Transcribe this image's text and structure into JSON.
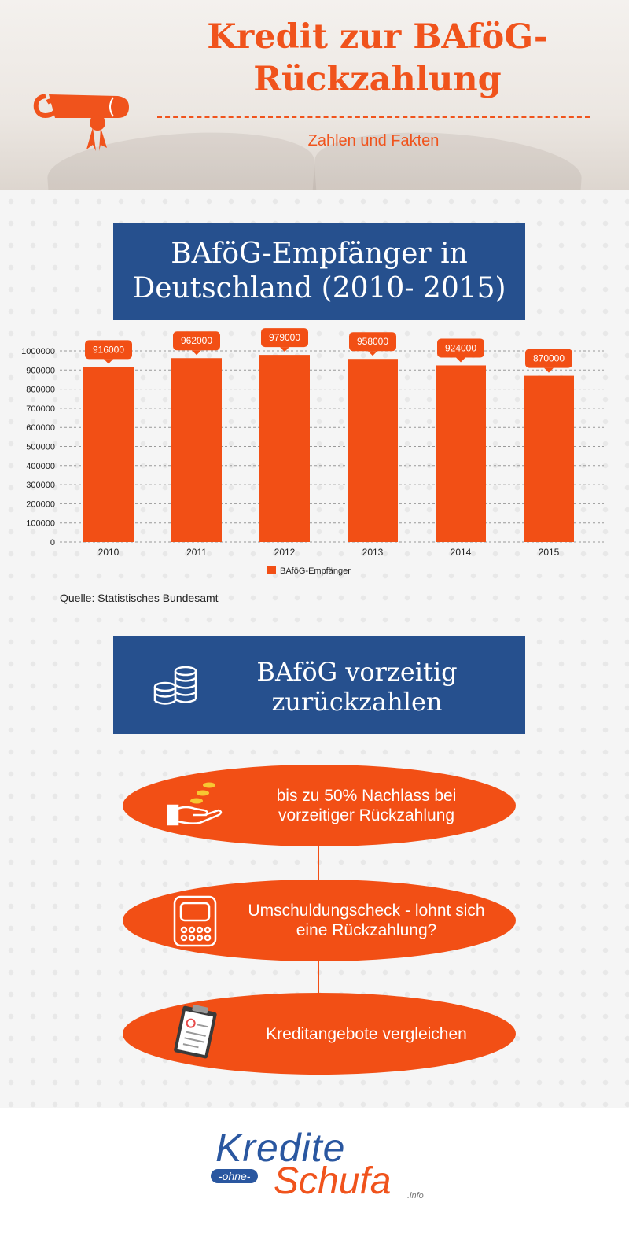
{
  "header": {
    "title": "Kredit zur BAföG-Rückzahlung",
    "subtitle": "Zahlen und Fakten"
  },
  "chart_section": {
    "banner": "BAföG-Empfänger in Deutschland (2010- 2015)",
    "source": "Quelle: Statistisches Bundesamt"
  },
  "chart_data": {
    "type": "bar",
    "categories": [
      "2010",
      "2011",
      "2012",
      "2013",
      "2014",
      "2015"
    ],
    "series": [
      {
        "name": "BAföG-Empfänger",
        "values": [
          916000,
          962000,
          979000,
          958000,
          924000,
          870000
        ]
      }
    ],
    "value_labels": [
      "916000",
      "962000",
      "979000",
      "958000",
      "924000",
      "870000"
    ],
    "yticks": [
      "0",
      "100000",
      "200000",
      "300000",
      "400000",
      "500000",
      "600000",
      "700000",
      "800000",
      "900000",
      "1000000"
    ],
    "ylim": [
      0,
      1000000
    ],
    "grid": true,
    "legend": "bottom",
    "color": "#f24f15"
  },
  "repay_section": {
    "banner": "BAföG vorzeitig zurückzahlen",
    "items": [
      {
        "text": "bis zu 50% Nachlass bei vorzeitiger Rückzahlung",
        "icon": "hand-coins-icon"
      },
      {
        "text": "Umschuldungscheck - lohnt sich eine Rückzahlung?",
        "icon": "calculator-icon"
      },
      {
        "text": "Kreditangebote vergleichen",
        "icon": "clipboard-icon"
      }
    ]
  },
  "logo": {
    "word1": "Kredite",
    "word2": "-ohne-",
    "word3": "Schufa",
    "suffix": ".info"
  },
  "colors": {
    "accent": "#f24f15",
    "banner": "#26508e"
  }
}
